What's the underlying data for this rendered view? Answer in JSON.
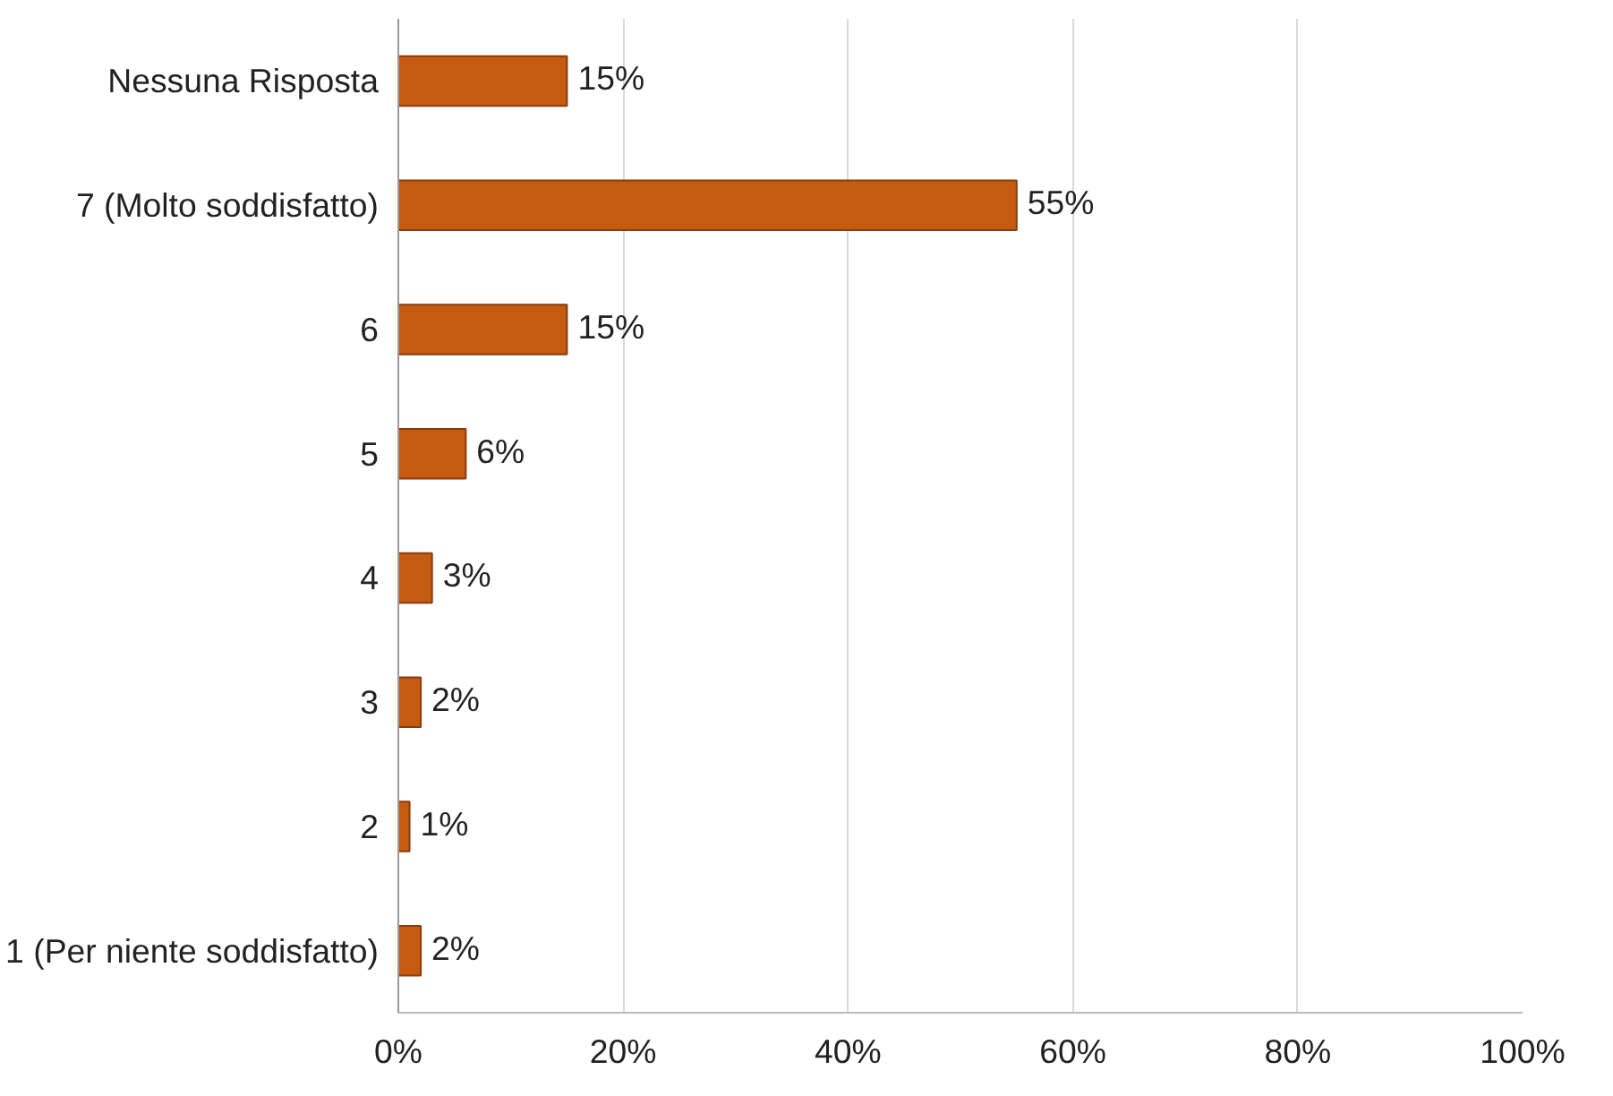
{
  "chart_data": {
    "type": "bar",
    "orientation": "horizontal",
    "categories": [
      "Nessuna Risposta",
      "7 (Molto soddisfatto)",
      "6",
      "5",
      "4",
      "3",
      "2",
      "1 (Per niente soddisfatto)"
    ],
    "values": [
      15,
      55,
      15,
      6,
      3,
      2,
      1,
      2
    ],
    "value_labels": [
      "15%",
      "55%",
      "15%",
      "6%",
      "3%",
      "2%",
      "1%",
      "2%"
    ],
    "color": "#c55a11",
    "xlim": [
      0,
      100
    ],
    "xticks": [
      {
        "value": 0,
        "label": "0%"
      },
      {
        "value": 20,
        "label": "20%"
      },
      {
        "value": 40,
        "label": "40%"
      },
      {
        "value": 60,
        "label": "60%"
      },
      {
        "value": 80,
        "label": "80%"
      },
      {
        "value": 100,
        "label": "100%"
      }
    ],
    "grid": "x"
  }
}
